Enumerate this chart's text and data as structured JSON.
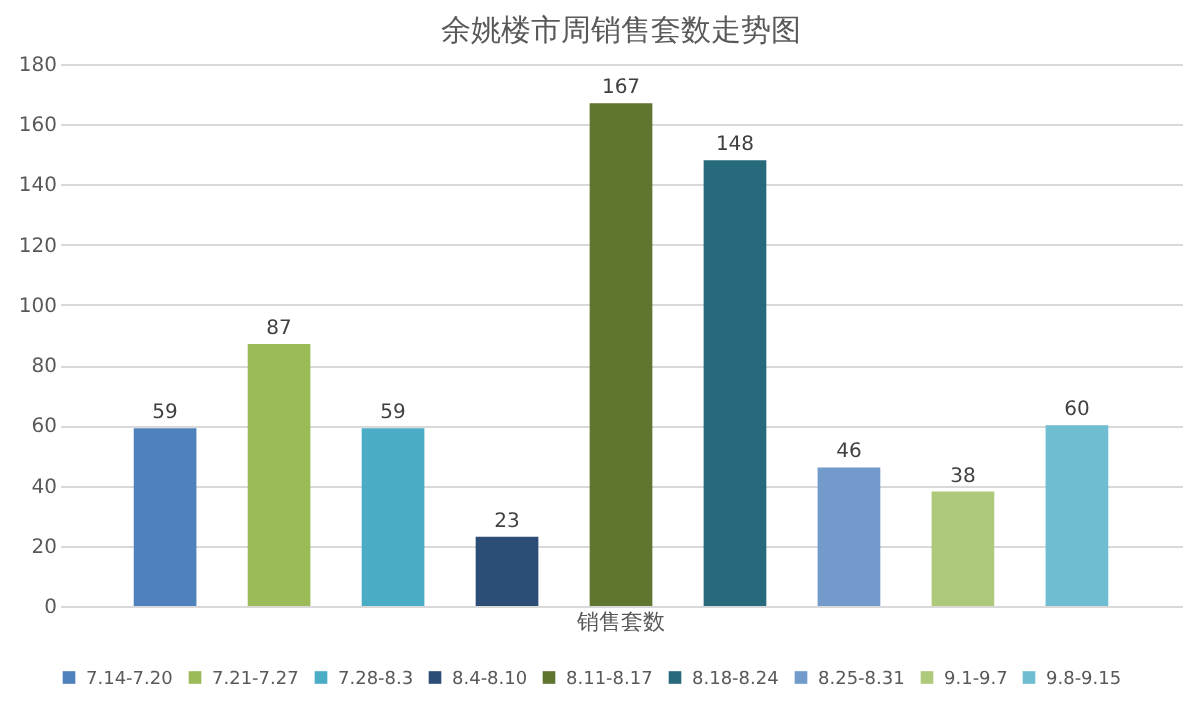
{
  "chart_data": {
    "type": "bar",
    "title": "余姚楼市周销售套数走势图",
    "categories": [
      "销售套数"
    ],
    "series": [
      {
        "name": "7.14-7.20",
        "color": "#4f81bd",
        "values": [
          59
        ]
      },
      {
        "name": "7.21-7.27",
        "color": "#9bbb59",
        "values": [
          87
        ]
      },
      {
        "name": "7.28-8.3",
        "color": "#4bacc6",
        "values": [
          59
        ]
      },
      {
        "name": "8.4-8.10",
        "color": "#2c4d75",
        "values": [
          23
        ]
      },
      {
        "name": "8.11-8.17",
        "color": "#5f7530",
        "values": [
          167
        ]
      },
      {
        "name": "8.18-8.24",
        "color": "#276a7c",
        "values": [
          148
        ]
      },
      {
        "name": "8.25-8.31",
        "color": "#729aca",
        "values": [
          46
        ]
      },
      {
        "name": "9.1-9.7",
        "color": "#afc97a",
        "values": [
          38
        ]
      },
      {
        "name": "9.8-9.15",
        "color": "#6fbdd1",
        "values": [
          60
        ]
      }
    ],
    "ylim": [
      0,
      180
    ],
    "yticks": [
      0,
      20,
      40,
      60,
      80,
      100,
      120,
      140,
      160,
      180
    ],
    "grid": "y",
    "data_labels": true,
    "legend": "bottom"
  }
}
